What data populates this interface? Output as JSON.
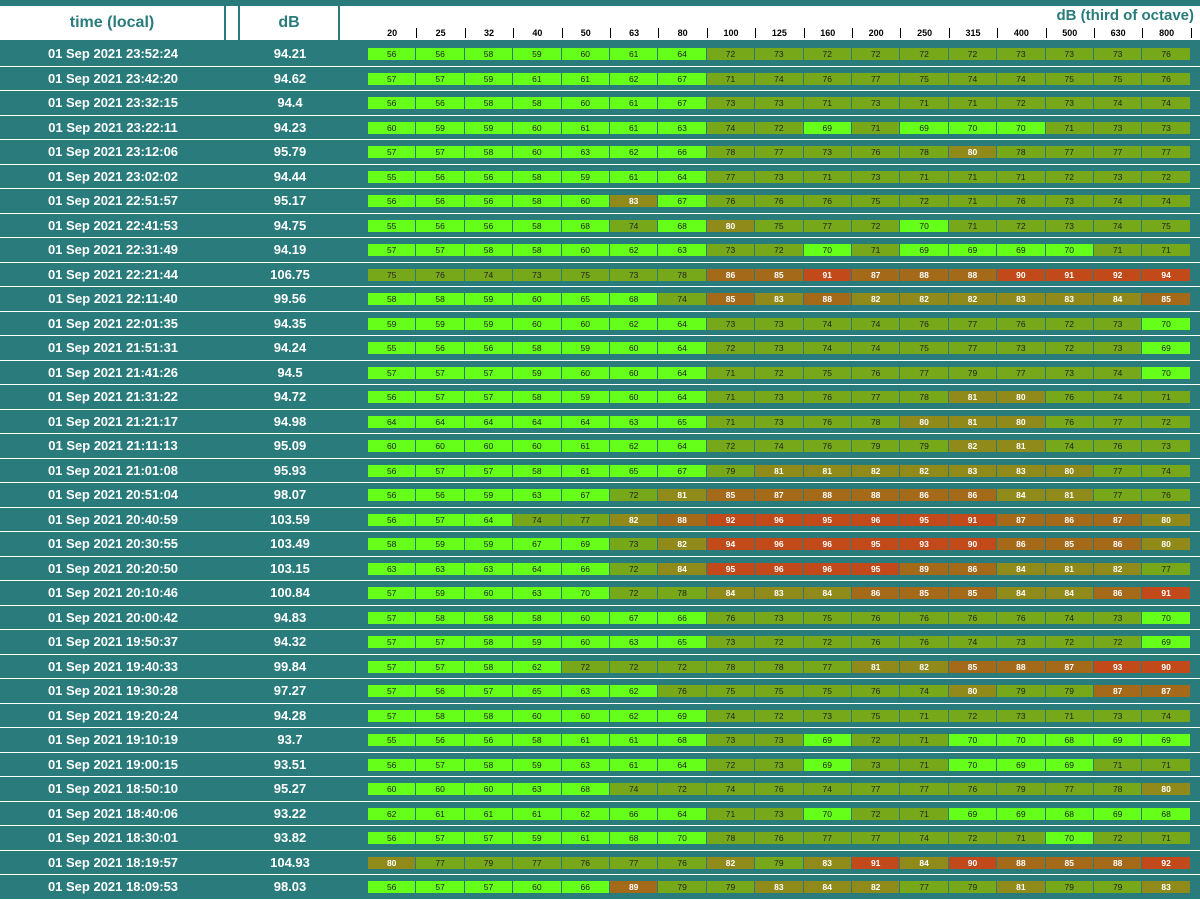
{
  "header": {
    "time_label": "time (local)",
    "db_label": "dB",
    "spectrum_label": "dB (third of octave)",
    "frequencies": [
      "20",
      "25",
      "32",
      "40",
      "50",
      "63",
      "80",
      "100",
      "125",
      "160",
      "200",
      "250",
      "315",
      "400",
      "500",
      "630",
      "800"
    ]
  },
  "rows": [
    {
      "time": "01 Sep 2021 23:52:24",
      "db": "94.21",
      "bands": [
        56,
        56,
        58,
        59,
        60,
        61,
        64,
        72,
        73,
        72,
        72,
        72,
        72,
        73,
        73,
        73,
        76
      ]
    },
    {
      "time": "01 Sep 2021 23:42:20",
      "db": "94.62",
      "bands": [
        57,
        57,
        59,
        61,
        61,
        62,
        67,
        71,
        74,
        76,
        77,
        75,
        74,
        74,
        75,
        75,
        76
      ]
    },
    {
      "time": "01 Sep 2021 23:32:15",
      "db": "94.4",
      "bands": [
        56,
        56,
        58,
        58,
        60,
        61,
        67,
        73,
        73,
        71,
        73,
        71,
        71,
        72,
        73,
        74,
        74
      ]
    },
    {
      "time": "01 Sep 2021 23:22:11",
      "db": "94.23",
      "bands": [
        60,
        59,
        59,
        60,
        61,
        61,
        63,
        74,
        72,
        69,
        71,
        69,
        70,
        70,
        71,
        73,
        73
      ]
    },
    {
      "time": "01 Sep 2021 23:12:06",
      "db": "95.79",
      "bands": [
        57,
        57,
        58,
        60,
        63,
        62,
        66,
        78,
        77,
        73,
        76,
        78,
        80,
        78,
        77,
        77,
        77
      ]
    },
    {
      "time": "01 Sep 2021 23:02:02",
      "db": "94.44",
      "bands": [
        55,
        56,
        56,
        58,
        59,
        61,
        64,
        77,
        73,
        71,
        73,
        71,
        71,
        71,
        72,
        73,
        72
      ]
    },
    {
      "time": "01 Sep 2021 22:51:57",
      "db": "95.17",
      "bands": [
        56,
        56,
        56,
        58,
        60,
        83,
        67,
        76,
        76,
        76,
        75,
        72,
        71,
        76,
        73,
        74,
        74
      ]
    },
    {
      "time": "01 Sep 2021 22:41:53",
      "db": "94.75",
      "bands": [
        55,
        56,
        56,
        58,
        68,
        74,
        68,
        80,
        75,
        77,
        72,
        70,
        71,
        72,
        73,
        74,
        75
      ]
    },
    {
      "time": "01 Sep 2021 22:31:49",
      "db": "94.19",
      "bands": [
        57,
        57,
        58,
        58,
        60,
        62,
        63,
        73,
        72,
        70,
        71,
        69,
        69,
        69,
        70,
        71,
        71
      ]
    },
    {
      "time": "01 Sep 2021 22:21:44",
      "db": "106.75",
      "bands": [
        75,
        76,
        74,
        73,
        75,
        73,
        78,
        86,
        85,
        91,
        87,
        88,
        88,
        90,
        91,
        92,
        94
      ]
    },
    {
      "time": "01 Sep 2021 22:11:40",
      "db": "99.56",
      "bands": [
        58,
        58,
        59,
        60,
        65,
        68,
        74,
        85,
        83,
        88,
        82,
        82,
        82,
        83,
        83,
        84,
        85
      ]
    },
    {
      "time": "01 Sep 2021 22:01:35",
      "db": "94.35",
      "bands": [
        59,
        59,
        59,
        60,
        60,
        62,
        64,
        73,
        73,
        74,
        74,
        76,
        77,
        76,
        72,
        73,
        70
      ]
    },
    {
      "time": "01 Sep 2021 21:51:31",
      "db": "94.24",
      "bands": [
        55,
        56,
        56,
        58,
        59,
        60,
        64,
        72,
        73,
        74,
        74,
        75,
        77,
        73,
        72,
        73,
        69
      ]
    },
    {
      "time": "01 Sep 2021 21:41:26",
      "db": "94.5",
      "bands": [
        57,
        57,
        57,
        59,
        60,
        60,
        64,
        71,
        72,
        75,
        76,
        77,
        79,
        77,
        73,
        74,
        70
      ]
    },
    {
      "time": "01 Sep 2021 21:31:22",
      "db": "94.72",
      "bands": [
        56,
        57,
        57,
        58,
        59,
        60,
        64,
        71,
        73,
        76,
        77,
        78,
        81,
        80,
        76,
        74,
        71
      ]
    },
    {
      "time": "01 Sep 2021 21:21:17",
      "db": "94.98",
      "bands": [
        64,
        64,
        64,
        64,
        64,
        63,
        65,
        71,
        73,
        76,
        78,
        80,
        81,
        80,
        76,
        77,
        72
      ]
    },
    {
      "time": "01 Sep 2021 21:11:13",
      "db": "95.09",
      "bands": [
        60,
        60,
        60,
        60,
        61,
        62,
        64,
        72,
        74,
        76,
        79,
        79,
        82,
        81,
        74,
        76,
        73
      ]
    },
    {
      "time": "01 Sep 2021 21:01:08",
      "db": "95.93",
      "bands": [
        56,
        57,
        57,
        58,
        61,
        65,
        67,
        79,
        81,
        81,
        82,
        82,
        83,
        83,
        80,
        77,
        74
      ]
    },
    {
      "time": "01 Sep 2021 20:51:04",
      "db": "98.07",
      "bands": [
        56,
        56,
        59,
        63,
        67,
        72,
        81,
        85,
        87,
        88,
        88,
        86,
        86,
        84,
        81,
        77,
        76
      ]
    },
    {
      "time": "01 Sep 2021 20:40:59",
      "db": "103.59",
      "bands": [
        56,
        57,
        64,
        74,
        77,
        82,
        88,
        92,
        96,
        95,
        96,
        95,
        91,
        87,
        86,
        87,
        80
      ]
    },
    {
      "time": "01 Sep 2021 20:30:55",
      "db": "103.49",
      "bands": [
        58,
        59,
        59,
        67,
        69,
        73,
        82,
        94,
        96,
        96,
        95,
        93,
        90,
        86,
        85,
        86,
        80
      ]
    },
    {
      "time": "01 Sep 2021 20:20:50",
      "db": "103.15",
      "bands": [
        63,
        63,
        63,
        64,
        66,
        72,
        84,
        95,
        96,
        96,
        95,
        89,
        86,
        84,
        81,
        82,
        77
      ]
    },
    {
      "time": "01 Sep 2021 20:10:46",
      "db": "100.84",
      "bands": [
        57,
        59,
        60,
        63,
        70,
        72,
        78,
        84,
        83,
        84,
        86,
        85,
        85,
        84,
        84,
        86,
        91
      ]
    },
    {
      "time": "01 Sep 2021 20:00:42",
      "db": "94.83",
      "bands": [
        57,
        58,
        58,
        58,
        60,
        67,
        66,
        76,
        73,
        75,
        76,
        76,
        76,
        76,
        74,
        73,
        70
      ]
    },
    {
      "time": "01 Sep 2021 19:50:37",
      "db": "94.32",
      "bands": [
        57,
        57,
        58,
        59,
        60,
        63,
        65,
        73,
        72,
        72,
        76,
        76,
        74,
        73,
        72,
        72,
        69
      ]
    },
    {
      "time": "01 Sep 2021 19:40:33",
      "db": "99.84",
      "bands": [
        57,
        57,
        58,
        62,
        72,
        72,
        72,
        78,
        78,
        77,
        81,
        82,
        85,
        88,
        87,
        93,
        90
      ]
    },
    {
      "time": "01 Sep 2021 19:30:28",
      "db": "97.27",
      "bands": [
        57,
        56,
        57,
        65,
        63,
        62,
        76,
        75,
        75,
        75,
        76,
        74,
        80,
        79,
        79,
        87,
        87
      ]
    },
    {
      "time": "01 Sep 2021 19:20:24",
      "db": "94.28",
      "bands": [
        57,
        58,
        58,
        60,
        60,
        62,
        69,
        74,
        72,
        73,
        75,
        71,
        72,
        73,
        71,
        73,
        74
      ]
    },
    {
      "time": "01 Sep 2021 19:10:19",
      "db": "93.7",
      "bands": [
        55,
        56,
        56,
        58,
        61,
        61,
        68,
        73,
        73,
        69,
        72,
        71,
        70,
        70,
        68,
        69,
        69
      ]
    },
    {
      "time": "01 Sep 2021 19:00:15",
      "db": "93.51",
      "bands": [
        56,
        57,
        58,
        59,
        63,
        61,
        64,
        72,
        73,
        69,
        73,
        71,
        70,
        69,
        69,
        71,
        71
      ]
    },
    {
      "time": "01 Sep 2021 18:50:10",
      "db": "95.27",
      "bands": [
        60,
        60,
        60,
        63,
        68,
        74,
        72,
        74,
        76,
        74,
        77,
        77,
        76,
        79,
        77,
        78,
        80
      ]
    },
    {
      "time": "01 Sep 2021 18:40:06",
      "db": "93.22",
      "bands": [
        62,
        61,
        61,
        61,
        62,
        66,
        64,
        71,
        73,
        70,
        72,
        71,
        69,
        69,
        68,
        69,
        68
      ]
    },
    {
      "time": "01 Sep 2021 18:30:01",
      "db": "93.82",
      "bands": [
        56,
        57,
        57,
        59,
        61,
        68,
        70,
        78,
        76,
        77,
        77,
        74,
        72,
        71,
        70,
        72,
        71
      ]
    },
    {
      "time": "01 Sep 2021 18:19:57",
      "db": "104.93",
      "bands": [
        80,
        77,
        79,
        77,
        76,
        77,
        76,
        82,
        79,
        83,
        91,
        84,
        90,
        88,
        85,
        88,
        92
      ]
    },
    {
      "time": "01 Sep 2021 18:09:53",
      "db": "98.03",
      "bands": [
        56,
        57,
        57,
        60,
        66,
        89,
        79,
        79,
        83,
        84,
        82,
        77,
        79,
        81,
        79,
        79,
        83
      ]
    }
  ],
  "colors": {
    "teal": "#2a7b7b",
    "low": "#66ff1a",
    "mid": "#76a81a",
    "high": "#c2491a"
  }
}
